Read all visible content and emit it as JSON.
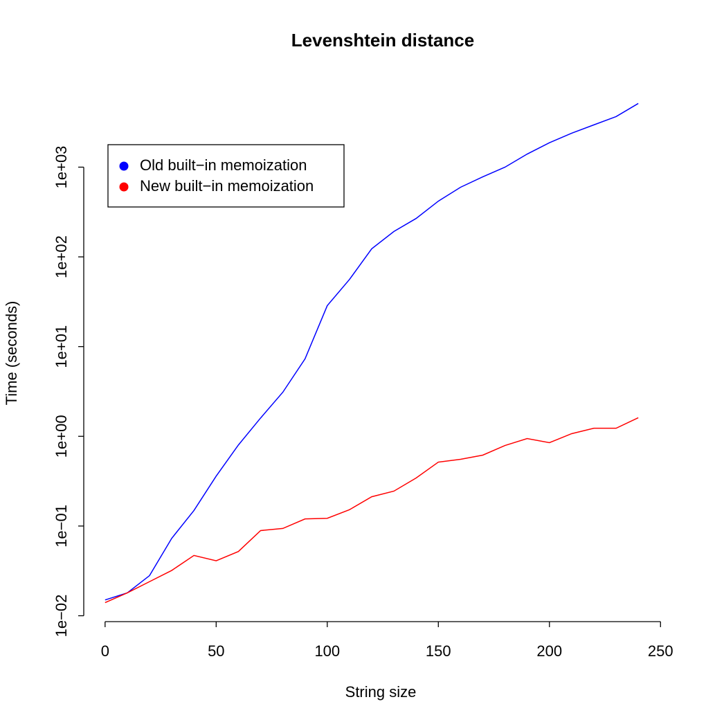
{
  "chart_data": {
    "type": "line",
    "title": "Levenshtein distance",
    "x_label": "String size",
    "y_label": "Time (seconds)",
    "x": [
      0,
      10,
      20,
      30,
      40,
      50,
      60,
      70,
      80,
      90,
      100,
      110,
      120,
      130,
      140,
      150,
      160,
      170,
      180,
      190,
      200,
      210,
      220,
      230,
      240
    ],
    "series": [
      {
        "name": "Old built−in memoization",
        "color": "#0000ff",
        "values": [
          0.015,
          0.018,
          0.028,
          0.073,
          0.149,
          0.36,
          0.8,
          1.6,
          3.1,
          7.3,
          28.6,
          56,
          123,
          192,
          268,
          418,
          597,
          780,
          1000,
          1400,
          1870,
          2390,
          2960,
          3660,
          5130
        ]
      },
      {
        "name": "New built−in memoization",
        "color": "#ff0000",
        "values": [
          0.014,
          0.018,
          0.024,
          0.032,
          0.047,
          0.041,
          0.052,
          0.089,
          0.094,
          0.12,
          0.122,
          0.152,
          0.212,
          0.245,
          0.343,
          0.516,
          0.554,
          0.617,
          0.79,
          0.944,
          0.849,
          1.07,
          1.23,
          1.23,
          1.61
        ]
      }
    ],
    "xlim": [
      -9.6,
      249.6
    ],
    "xticks": [
      0,
      50,
      100,
      150,
      200,
      250
    ],
    "ylim": [
      0.0083,
      8500
    ],
    "yticks": [
      {
        "value": 0.01,
        "label": "1e−02"
      },
      {
        "value": 0.1,
        "label": "1e−01"
      },
      {
        "value": 1,
        "label": "1e+00"
      },
      {
        "value": 10,
        "label": "1e+01"
      },
      {
        "value": 100,
        "label": "1e+02"
      },
      {
        "value": 1000,
        "label": "1e+03"
      }
    ],
    "y_scale": "log",
    "legend": "top-left"
  }
}
